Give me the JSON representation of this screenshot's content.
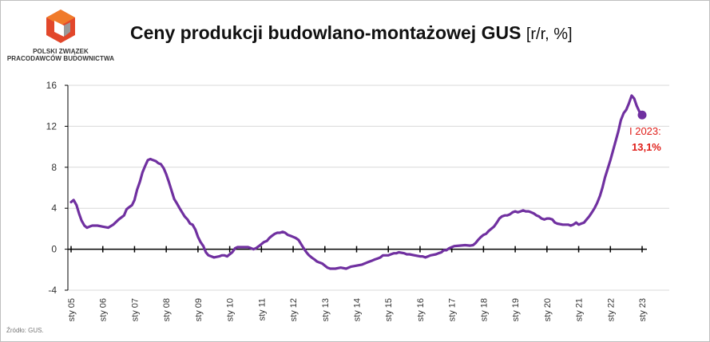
{
  "logo": {
    "line1": "POLSKI ZWIĄZEK",
    "line2": "PRACODAWCÓW BUDOWNICTWA",
    "icon": "pzpb-cube-logo-icon",
    "colors": {
      "red": "#e2472b",
      "orange": "#f07a2a",
      "grey": "#9a9a9a"
    }
  },
  "title": {
    "main": "Ceny produkcji budowlano-montażowej GUS",
    "unit": "[r/r, %]"
  },
  "source": "Źródło: GUS.",
  "annotation": {
    "label": "I 2023:",
    "value": "13,1%",
    "color": "#e0201b"
  },
  "chart_data": {
    "type": "line",
    "title": "Ceny produkcji budowlano-montażowej GUS",
    "ylabel": "",
    "xlabel": "",
    "ylim": [
      -4,
      16
    ],
    "yticks": [
      -4,
      0,
      4,
      8,
      12,
      16
    ],
    "xlim": [
      2005.0,
      2023.0
    ],
    "xticks": [
      {
        "x": 2005,
        "label": "sty 05"
      },
      {
        "x": 2006,
        "label": "sty 06"
      },
      {
        "x": 2007,
        "label": "sty 07"
      },
      {
        "x": 2008,
        "label": "sty 08"
      },
      {
        "x": 2009,
        "label": "sty 09"
      },
      {
        "x": 2010,
        "label": "sty 10"
      },
      {
        "x": 2011,
        "label": "sty 11"
      },
      {
        "x": 2012,
        "label": "sty 12"
      },
      {
        "x": 2013,
        "label": "sty 13"
      },
      {
        "x": 2014,
        "label": "sty 14"
      },
      {
        "x": 2015,
        "label": "sty 15"
      },
      {
        "x": 2016,
        "label": "sty 16"
      },
      {
        "x": 2017,
        "label": "sty 17"
      },
      {
        "x": 2018,
        "label": "sty 18"
      },
      {
        "x": 2019,
        "label": "sty 19"
      },
      {
        "x": 2020,
        "label": "sty 20"
      },
      {
        "x": 2021,
        "label": "sty 21"
      },
      {
        "x": 2022,
        "label": "sty 22"
      },
      {
        "x": 2023,
        "label": "sty 23"
      }
    ],
    "grid": "horizontal",
    "line_color": "#7030a0",
    "series": [
      {
        "points": [
          [
            2005.0,
            4.6
          ],
          [
            2005.08,
            4.8
          ],
          [
            2005.17,
            4.3
          ],
          [
            2005.25,
            3.5
          ],
          [
            2005.33,
            2.8
          ],
          [
            2005.42,
            2.3
          ],
          [
            2005.5,
            2.1
          ],
          [
            2005.58,
            2.2
          ],
          [
            2005.67,
            2.3
          ],
          [
            2005.83,
            2.3
          ],
          [
            2006.0,
            2.2
          ],
          [
            2006.17,
            2.1
          ],
          [
            2006.33,
            2.4
          ],
          [
            2006.5,
            2.9
          ],
          [
            2006.67,
            3.3
          ],
          [
            2006.75,
            3.9
          ],
          [
            2006.83,
            4.1
          ],
          [
            2006.92,
            4.3
          ],
          [
            2007.0,
            4.8
          ],
          [
            2007.08,
            5.8
          ],
          [
            2007.17,
            6.6
          ],
          [
            2007.25,
            7.5
          ],
          [
            2007.33,
            8.1
          ],
          [
            2007.42,
            8.7
          ],
          [
            2007.5,
            8.8
          ],
          [
            2007.58,
            8.7
          ],
          [
            2007.67,
            8.6
          ],
          [
            2007.75,
            8.4
          ],
          [
            2007.83,
            8.3
          ],
          [
            2007.92,
            7.9
          ],
          [
            2008.0,
            7.3
          ],
          [
            2008.08,
            6.6
          ],
          [
            2008.17,
            5.7
          ],
          [
            2008.25,
            4.9
          ],
          [
            2008.33,
            4.5
          ],
          [
            2008.42,
            4.0
          ],
          [
            2008.5,
            3.6
          ],
          [
            2008.58,
            3.2
          ],
          [
            2008.67,
            2.9
          ],
          [
            2008.75,
            2.5
          ],
          [
            2008.83,
            2.4
          ],
          [
            2008.92,
            1.9
          ],
          [
            2009.0,
            1.2
          ],
          [
            2009.08,
            0.7
          ],
          [
            2009.17,
            0.3
          ],
          [
            2009.25,
            -0.3
          ],
          [
            2009.33,
            -0.6
          ],
          [
            2009.42,
            -0.7
          ],
          [
            2009.5,
            -0.8
          ],
          [
            2009.67,
            -0.7
          ],
          [
            2009.75,
            -0.6
          ],
          [
            2009.83,
            -0.6
          ],
          [
            2009.92,
            -0.7
          ],
          [
            2010.0,
            -0.5
          ],
          [
            2010.08,
            -0.3
          ],
          [
            2010.17,
            0.1
          ],
          [
            2010.25,
            0.2
          ],
          [
            2010.42,
            0.2
          ],
          [
            2010.58,
            0.2
          ],
          [
            2010.67,
            0.1
          ],
          [
            2010.75,
            0.0
          ],
          [
            2010.83,
            0.1
          ],
          [
            2010.92,
            0.3
          ],
          [
            2011.0,
            0.5
          ],
          [
            2011.08,
            0.7
          ],
          [
            2011.17,
            0.8
          ],
          [
            2011.25,
            1.1
          ],
          [
            2011.33,
            1.3
          ],
          [
            2011.42,
            1.5
          ],
          [
            2011.5,
            1.6
          ],
          [
            2011.58,
            1.6
          ],
          [
            2011.67,
            1.7
          ],
          [
            2011.75,
            1.6
          ],
          [
            2011.83,
            1.4
          ],
          [
            2011.92,
            1.3
          ],
          [
            2012.0,
            1.2
          ],
          [
            2012.08,
            1.1
          ],
          [
            2012.17,
            0.9
          ],
          [
            2012.25,
            0.5
          ],
          [
            2012.33,
            0.1
          ],
          [
            2012.42,
            -0.3
          ],
          [
            2012.5,
            -0.6
          ],
          [
            2012.58,
            -0.8
          ],
          [
            2012.67,
            -1.0
          ],
          [
            2012.75,
            -1.2
          ],
          [
            2012.83,
            -1.3
          ],
          [
            2012.92,
            -1.4
          ],
          [
            2013.0,
            -1.6
          ],
          [
            2013.08,
            -1.8
          ],
          [
            2013.17,
            -1.9
          ],
          [
            2013.33,
            -1.9
          ],
          [
            2013.5,
            -1.8
          ],
          [
            2013.67,
            -1.9
          ],
          [
            2013.83,
            -1.7
          ],
          [
            2014.0,
            -1.6
          ],
          [
            2014.17,
            -1.5
          ],
          [
            2014.33,
            -1.3
          ],
          [
            2014.5,
            -1.1
          ],
          [
            2014.58,
            -1.0
          ],
          [
            2014.67,
            -0.9
          ],
          [
            2014.75,
            -0.8
          ],
          [
            2014.83,
            -0.6
          ],
          [
            2015.0,
            -0.6
          ],
          [
            2015.08,
            -0.5
          ],
          [
            2015.17,
            -0.4
          ],
          [
            2015.25,
            -0.4
          ],
          [
            2015.33,
            -0.3
          ],
          [
            2015.5,
            -0.4
          ],
          [
            2015.58,
            -0.5
          ],
          [
            2015.67,
            -0.5
          ],
          [
            2015.83,
            -0.6
          ],
          [
            2016.0,
            -0.7
          ],
          [
            2016.08,
            -0.7
          ],
          [
            2016.17,
            -0.8
          ],
          [
            2016.25,
            -0.7
          ],
          [
            2016.33,
            -0.6
          ],
          [
            2016.5,
            -0.5
          ],
          [
            2016.58,
            -0.4
          ],
          [
            2016.67,
            -0.3
          ],
          [
            2016.75,
            -0.1
          ],
          [
            2016.83,
            -0.1
          ],
          [
            2016.92,
            0.1
          ],
          [
            2017.0,
            0.2
          ],
          [
            2017.08,
            0.3
          ],
          [
            2017.25,
            0.35
          ],
          [
            2017.42,
            0.4
          ],
          [
            2017.58,
            0.35
          ],
          [
            2017.67,
            0.4
          ],
          [
            2017.75,
            0.6
          ],
          [
            2017.83,
            0.9
          ],
          [
            2017.92,
            1.2
          ],
          [
            2018.0,
            1.4
          ],
          [
            2018.08,
            1.5
          ],
          [
            2018.17,
            1.8
          ],
          [
            2018.25,
            2.0
          ],
          [
            2018.33,
            2.2
          ],
          [
            2018.42,
            2.6
          ],
          [
            2018.5,
            3.0
          ],
          [
            2018.58,
            3.2
          ],
          [
            2018.67,
            3.3
          ],
          [
            2018.75,
            3.3
          ],
          [
            2018.83,
            3.4
          ],
          [
            2018.92,
            3.6
          ],
          [
            2019.0,
            3.7
          ],
          [
            2019.08,
            3.6
          ],
          [
            2019.17,
            3.7
          ],
          [
            2019.25,
            3.8
          ],
          [
            2019.33,
            3.7
          ],
          [
            2019.42,
            3.7
          ],
          [
            2019.5,
            3.6
          ],
          [
            2019.58,
            3.5
          ],
          [
            2019.67,
            3.3
          ],
          [
            2019.75,
            3.2
          ],
          [
            2019.83,
            3.0
          ],
          [
            2019.92,
            2.9
          ],
          [
            2020.0,
            3.0
          ],
          [
            2020.08,
            3.0
          ],
          [
            2020.17,
            2.9
          ],
          [
            2020.25,
            2.6
          ],
          [
            2020.33,
            2.5
          ],
          [
            2020.5,
            2.4
          ],
          [
            2020.67,
            2.4
          ],
          [
            2020.75,
            2.3
          ],
          [
            2020.83,
            2.4
          ],
          [
            2020.92,
            2.6
          ],
          [
            2021.0,
            2.4
          ],
          [
            2021.08,
            2.5
          ],
          [
            2021.17,
            2.6
          ],
          [
            2021.25,
            2.9
          ],
          [
            2021.33,
            3.2
          ],
          [
            2021.42,
            3.6
          ],
          [
            2021.5,
            4.0
          ],
          [
            2021.58,
            4.5
          ],
          [
            2021.67,
            5.2
          ],
          [
            2021.75,
            6.0
          ],
          [
            2021.83,
            7.0
          ],
          [
            2021.92,
            7.9
          ],
          [
            2022.0,
            8.7
          ],
          [
            2022.08,
            9.6
          ],
          [
            2022.17,
            10.6
          ],
          [
            2022.25,
            11.5
          ],
          [
            2022.33,
            12.6
          ],
          [
            2022.42,
            13.3
          ],
          [
            2022.5,
            13.6
          ],
          [
            2022.58,
            14.2
          ],
          [
            2022.67,
            15.0
          ],
          [
            2022.75,
            14.7
          ],
          [
            2022.83,
            14.0
          ],
          [
            2022.92,
            13.4
          ],
          [
            2023.0,
            13.1
          ]
        ]
      }
    ],
    "last_point": {
      "x": 2023.0,
      "y": 13.1
    }
  }
}
